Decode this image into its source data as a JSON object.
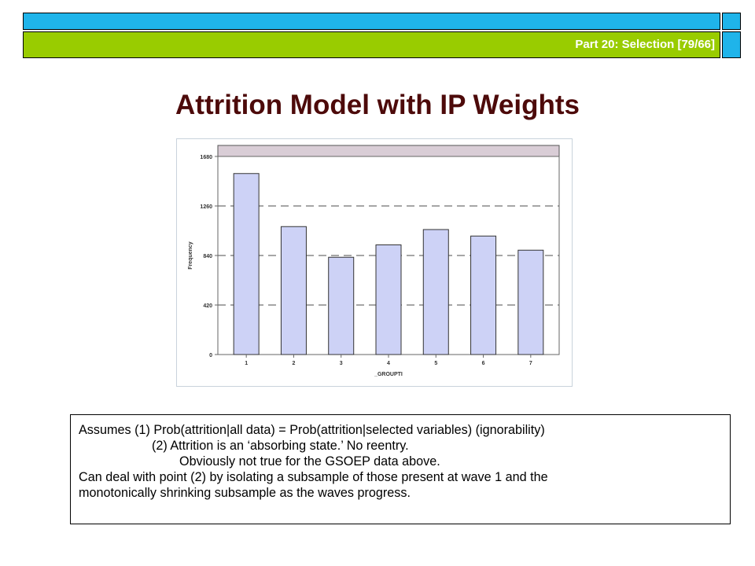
{
  "header": {
    "label": "Part 20: Selection [79/66]",
    "top_color": "#1fb4ea",
    "bar_color": "#99cc00"
  },
  "title": "Attrition Model with IP Weights",
  "chart_data": {
    "type": "bar",
    "categories": [
      "1",
      "2",
      "3",
      "4",
      "5",
      "6",
      "7"
    ],
    "values": [
      1535,
      1085,
      825,
      930,
      1060,
      1005,
      885
    ],
    "xlabel": "_GROUPTI",
    "ylabel": "Frequency",
    "ylim": [
      0,
      1680
    ],
    "yticks": [
      0,
      420,
      840,
      1260,
      1680
    ],
    "grid": "dashed horizontal",
    "bar_color": "#cdd2f6",
    "header_band_color": "#d9cdd6"
  },
  "notes": {
    "line1": "Assumes (1) Prob(attrition|all data) = Prob(attrition|selected variables) (ignorability)",
    "line2": "(2) Attrition is an ‘absorbing state.’  No reentry.",
    "line3": "Obviously not true for the GSOEP data above.",
    "line4": "Can deal with point (2) by isolating a subsample of those present at wave 1 and the",
    "line5": "monotonically shrinking subsample as the waves progress."
  }
}
